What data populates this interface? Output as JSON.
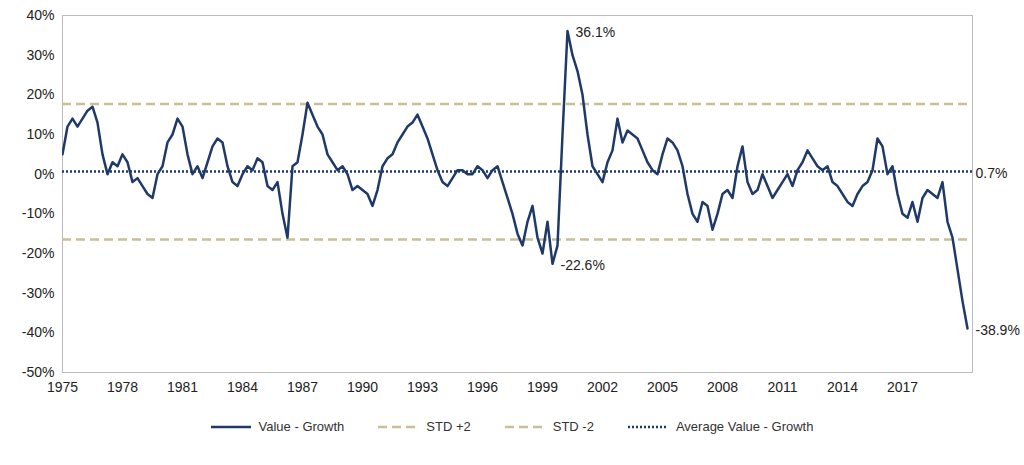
{
  "chart_data": {
    "type": "line",
    "x": [
      1975,
      1975.25,
      1975.5,
      1975.75,
      1976,
      1976.25,
      1976.5,
      1976.75,
      1977,
      1977.25,
      1977.5,
      1977.75,
      1978,
      1978.25,
      1978.5,
      1978.75,
      1979,
      1979.25,
      1979.5,
      1979.75,
      1980,
      1980.25,
      1980.5,
      1980.75,
      1981,
      1981.25,
      1981.5,
      1981.75,
      1982,
      1982.25,
      1982.5,
      1982.75,
      1983,
      1983.25,
      1983.5,
      1983.75,
      1984,
      1984.25,
      1984.5,
      1984.75,
      1985,
      1985.25,
      1985.5,
      1985.75,
      1986,
      1986.25,
      1986.5,
      1986.75,
      1987,
      1987.25,
      1987.5,
      1987.75,
      1988,
      1988.25,
      1988.5,
      1988.75,
      1989,
      1989.25,
      1989.5,
      1989.75,
      1990,
      1990.25,
      1990.5,
      1990.75,
      1991,
      1991.25,
      1991.5,
      1991.75,
      1992,
      1992.25,
      1992.5,
      1992.75,
      1993,
      1993.25,
      1993.5,
      1993.75,
      1994,
      1994.25,
      1994.5,
      1994.75,
      1995,
      1995.25,
      1995.5,
      1995.75,
      1996,
      1996.25,
      1996.5,
      1996.75,
      1997,
      1997.25,
      1997.5,
      1997.75,
      1998,
      1998.25,
      1998.5,
      1998.75,
      1999,
      1999.25,
      1999.5,
      1999.75,
      2000,
      2000.25,
      2000.5,
      2000.75,
      2001,
      2001.25,
      2001.5,
      2001.75,
      2002,
      2002.25,
      2002.5,
      2002.75,
      2003,
      2003.25,
      2003.5,
      2003.75,
      2004,
      2004.25,
      2004.5,
      2004.75,
      2005,
      2005.25,
      2005.5,
      2005.75,
      2006,
      2006.25,
      2006.5,
      2006.75,
      2007,
      2007.25,
      2007.5,
      2007.75,
      2008,
      2008.25,
      2008.5,
      2008.75,
      2009,
      2009.25,
      2009.5,
      2009.75,
      2010,
      2010.25,
      2010.5,
      2010.75,
      2011,
      2011.25,
      2011.5,
      2011.75,
      2012,
      2012.25,
      2012.5,
      2012.75,
      2013,
      2013.25,
      2013.5,
      2013.75,
      2014,
      2014.25,
      2014.5,
      2014.75,
      2015,
      2015.25,
      2015.5,
      2015.75,
      2016,
      2016.25,
      2016.5,
      2016.75,
      2017,
      2017.25,
      2017.5,
      2017.75,
      2018,
      2018.25,
      2018.5,
      2018.75,
      2019,
      2019.25,
      2019.5,
      2019.75,
      2020,
      2020.25
    ],
    "series": [
      {
        "name": "Value - Growth",
        "color": "#1f3a68",
        "line_style": "solid",
        "values": [
          5,
          12,
          14,
          12,
          14,
          16,
          17,
          13,
          5,
          0,
          3,
          2,
          5,
          3,
          -2,
          -1,
          -3,
          -5,
          -6,
          0,
          2,
          8,
          10,
          14,
          12,
          5,
          0,
          2,
          -1,
          3,
          7,
          9,
          8,
          2,
          -2,
          -3,
          0,
          2,
          1,
          4,
          3,
          -3,
          -4,
          -2,
          -10,
          -16,
          2,
          3,
          10,
          18,
          15,
          12,
          10,
          5,
          3,
          1,
          2,
          0,
          -4,
          -3,
          -4,
          -5,
          -8,
          -4,
          2,
          4,
          5,
          8,
          10,
          12,
          13,
          15,
          12,
          9,
          5,
          1,
          -2,
          -3,
          -1,
          1,
          1,
          0,
          0,
          2,
          1,
          -1,
          1,
          2,
          -2,
          -6,
          -10,
          -15,
          -18,
          -12,
          -8,
          -16,
          -20,
          -12,
          -22.6,
          -18,
          10,
          36.1,
          30,
          26,
          20,
          10,
          2,
          0,
          -2,
          3,
          6,
          14,
          8,
          11,
          10,
          9,
          6,
          3,
          1,
          0,
          5,
          9,
          8,
          6,
          2,
          -5,
          -10,
          -12,
          -7,
          -8,
          -14,
          -10,
          -5,
          -4,
          -6,
          2,
          7,
          -2,
          -5,
          -4,
          0,
          -3,
          -6,
          -4,
          -2,
          0,
          -3,
          1,
          3,
          6,
          4,
          2,
          1,
          2,
          -2,
          -3,
          -5,
          -7,
          -8,
          -5,
          -3,
          -2,
          1,
          9,
          7,
          0,
          2,
          -5,
          -10,
          -11,
          -7,
          -12,
          -6,
          -4,
          -5,
          -6,
          -2,
          -12,
          -16,
          -24,
          -32,
          -38.9
        ]
      }
    ],
    "reference_lines": [
      {
        "name": "STD +2",
        "value": 17.7,
        "color": "#c9bf97",
        "line_style": "dashed"
      },
      {
        "name": "STD -2",
        "value": -16.5,
        "color": "#c9bf97",
        "line_style": "dashed"
      },
      {
        "name": "Average Value - Growth",
        "value": 0.7,
        "color": "#1f3a68",
        "line_style": "dotted"
      }
    ],
    "annotations": [
      {
        "text": "36.1%",
        "x": 2000.25,
        "y": 36.1
      },
      {
        "text": "-22.6%",
        "x": 1999.5,
        "y": -22.6
      },
      {
        "text": "0.7%",
        "x": 2020.25,
        "y": 0.7
      },
      {
        "text": "-38.9%",
        "x": 2020.25,
        "y": -38.9
      }
    ],
    "xlim": [
      1975,
      2020.5
    ],
    "xticks": [
      1975,
      1978,
      1981,
      1984,
      1987,
      1990,
      1993,
      1996,
      1999,
      2002,
      2005,
      2008,
      2011,
      2014,
      2017
    ],
    "ylim": [
      -50,
      40
    ],
    "yticks": [
      {
        "value": -50,
        "label": "-50%"
      },
      {
        "value": -40,
        "label": "-40%"
      },
      {
        "value": -30,
        "label": "-30%"
      },
      {
        "value": -20,
        "label": "-20%"
      },
      {
        "value": -10,
        "label": "-10%"
      },
      {
        "value": 0,
        "label": "0%"
      },
      {
        "value": 10,
        "label": "10%"
      },
      {
        "value": 20,
        "label": "20%"
      },
      {
        "value": 30,
        "label": "30%"
      },
      {
        "value": 40,
        "label": "40%"
      }
    ],
    "grid": false,
    "legend": "bottom"
  }
}
